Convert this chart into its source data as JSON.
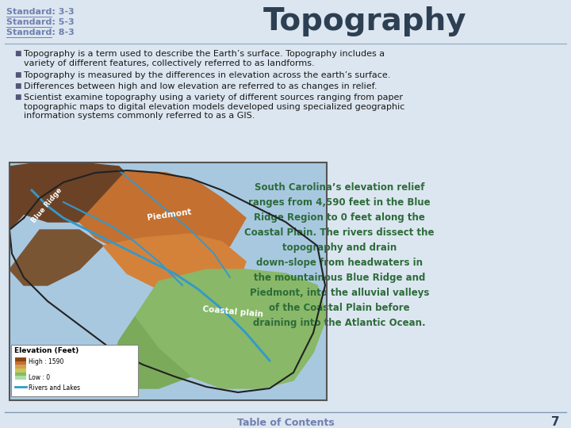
{
  "title": "Topography",
  "title_color": "#2d3f52",
  "title_fontsize": 28,
  "bg_color": "#dce6f0",
  "standards": [
    "Standard: 3-3",
    "Standard: 5-3",
    "Standard: 8-3"
  ],
  "standards_color": "#7080b0",
  "standards_fontsize": 8.0,
  "bullet_points": [
    "Topography is a term used to describe the Earth’s surface. Topography includes a\nvariety of different features, collectively referred to as landforms.",
    "Topography is measured by the differences in elevation across the earth’s surface.",
    "Differences between high and low elevation are referred to as changes in relief.",
    "Scientist examine topography using a variety of different sources ranging from paper\ntopographic maps to digital elevation models developed using specialized geographic\ninformation systems commonly referred to as a GIS."
  ],
  "bullet_color": "#1a1a1a",
  "bullet_fontsize": 8.0,
  "sidebar_text": "South Carolina’s elevation relief\nranges from 4,590 feet in the Blue\nRidge Region to 0 feet along the\nCoastal Plain. The rivers dissect the\ntopography and drain\ndown-slope from headwaters in\nthe mountainous Blue Ridge and\nPiedmont, into the alluvial valleys\nof the Coastal Plain before\ndraining into the Atlantic Ocean.",
  "sidebar_color": "#2d6b3a",
  "sidebar_fontsize": 8.5,
  "page_num": "7",
  "toc_text": "Table of Contents",
  "toc_color": "#7080b0",
  "footer_line_color": "#5a7a9a",
  "bullet_marker": "■"
}
